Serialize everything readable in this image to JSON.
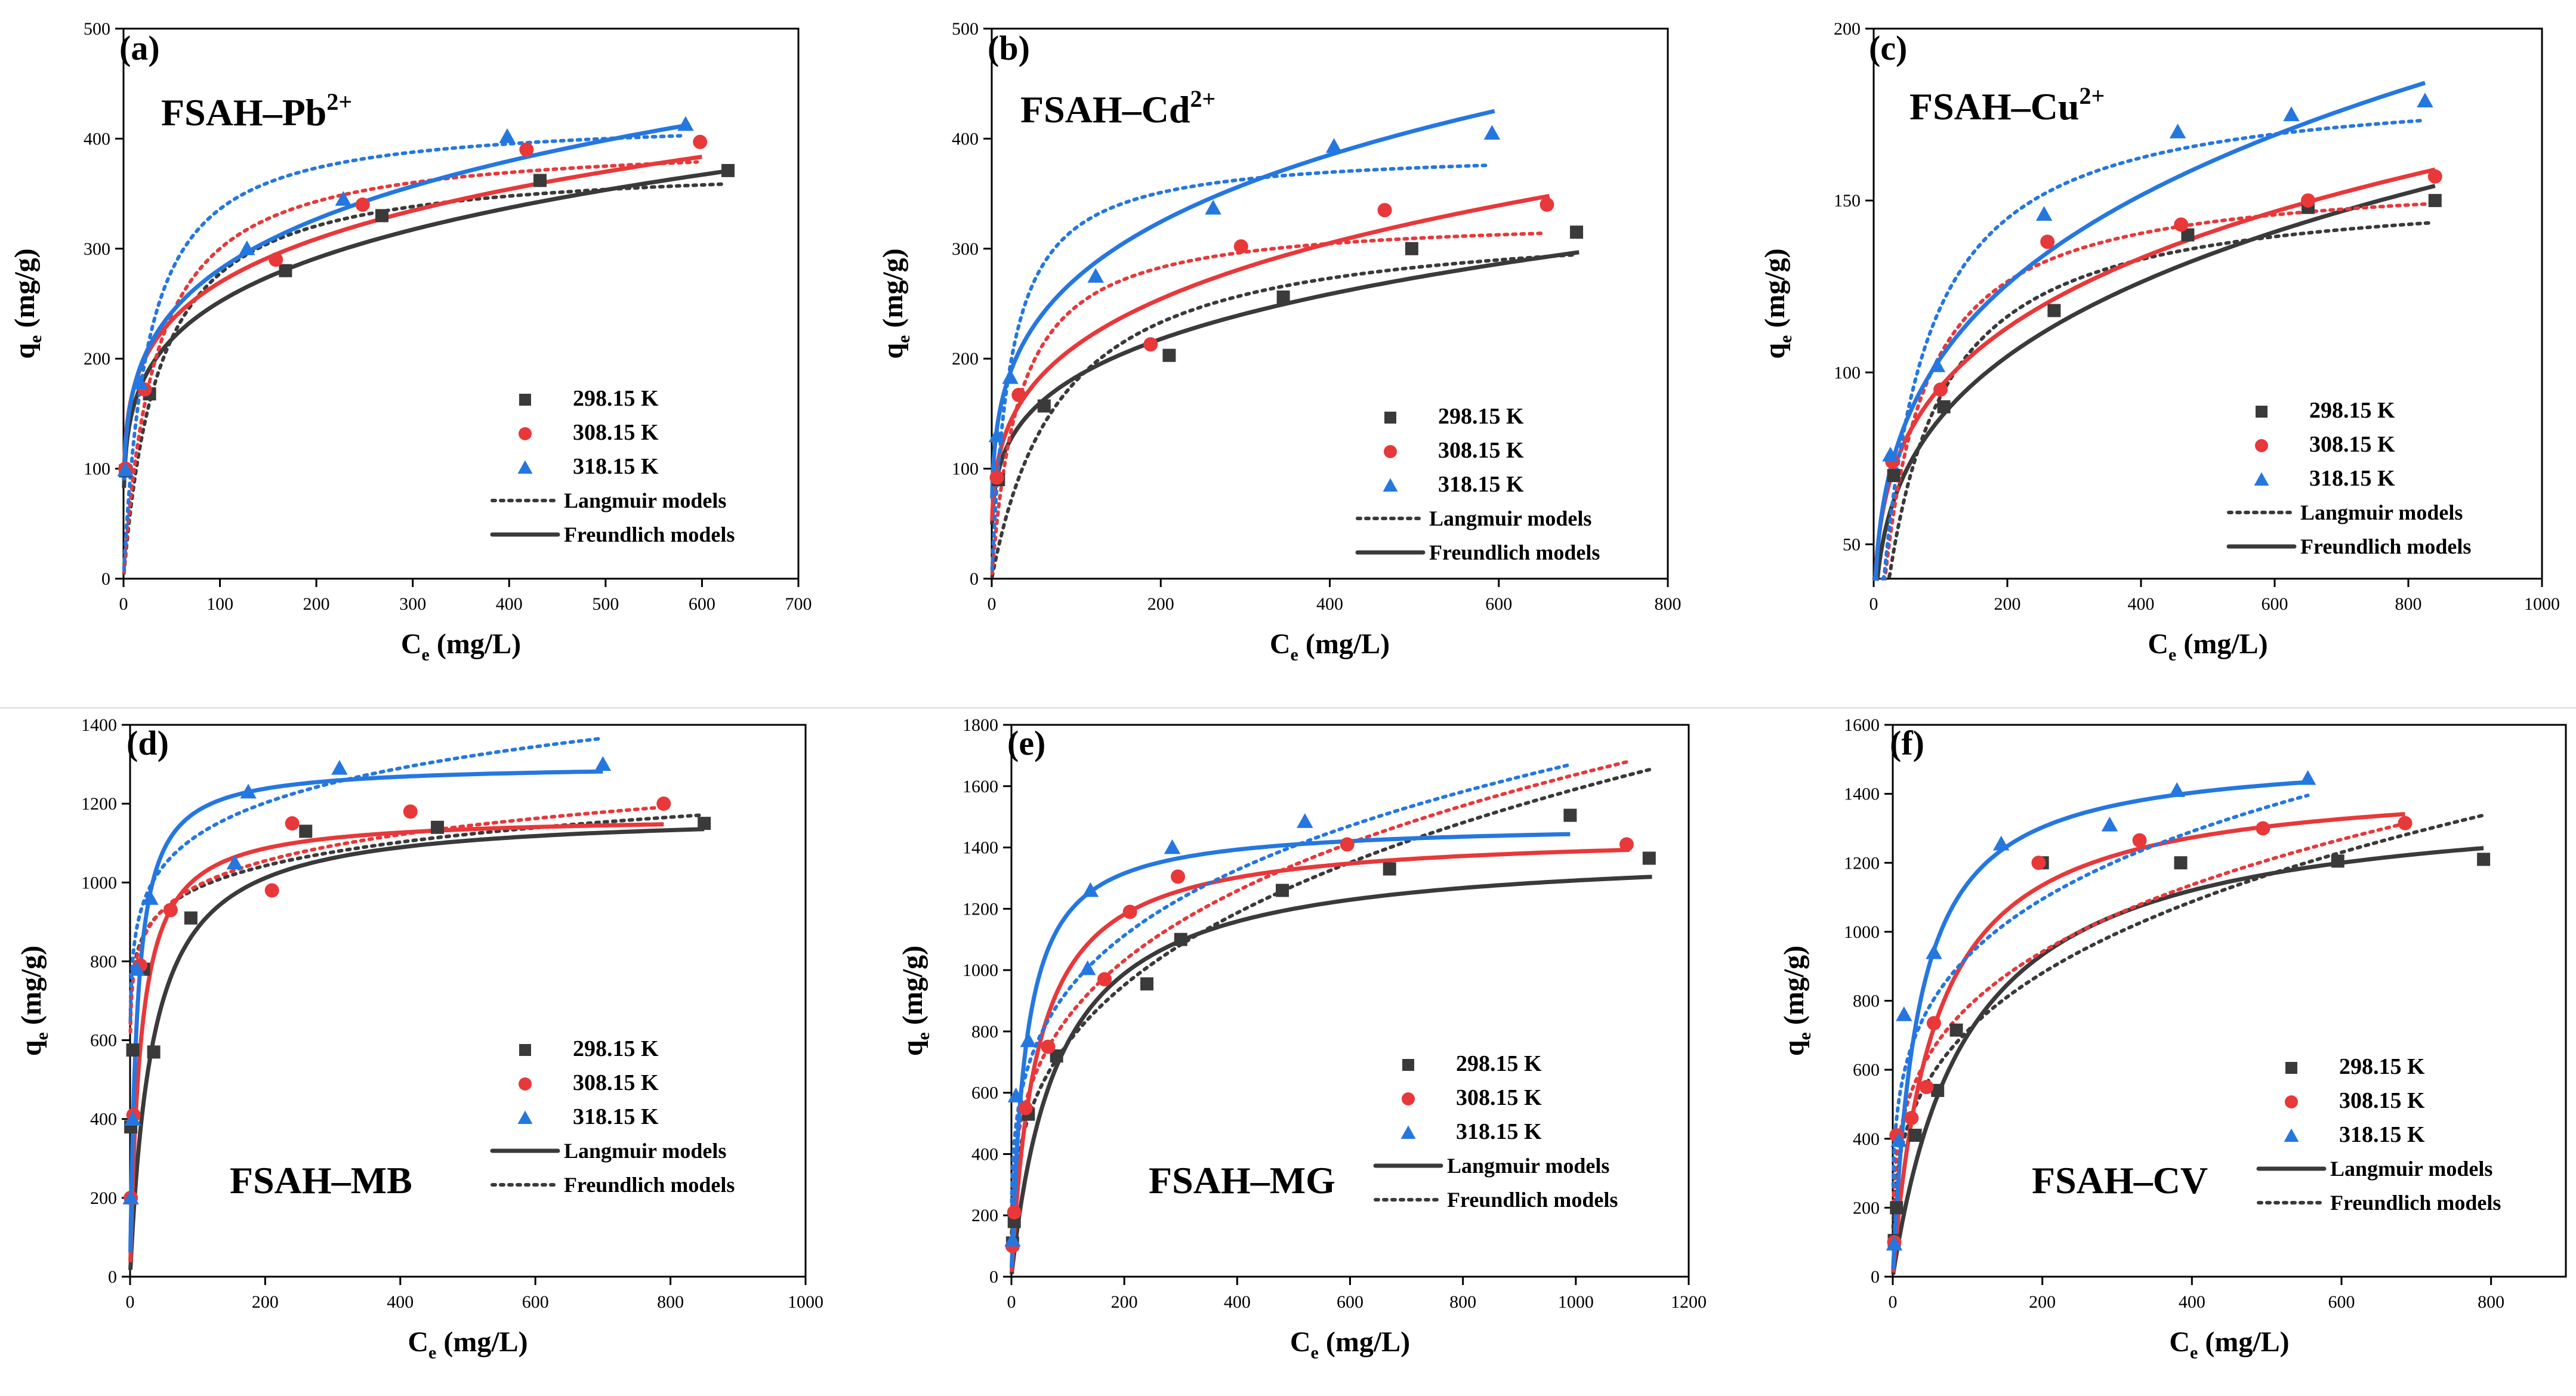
{
  "figure": {
    "colors": {
      "s298": "#3a3a3a",
      "s308": "#e8383a",
      "s318": "#2577e0",
      "axis": "#000000",
      "divider": "#e4e4e4"
    },
    "legend_entries": [
      "298.15 K",
      "308.15 K",
      "318.15 K"
    ],
    "panels": [
      {
        "tag": "(a)",
        "name": "FSAH–Pb",
        "ion": "2+",
        "xlabel_main": "C",
        "xlabel_sub": "e",
        "xlabel_unit": " (mg/L)",
        "ylabel_main": "q",
        "ylabel_sub": "e",
        "ylabel_unit": " (mg/g)",
        "xlim": [
          0,
          700
        ],
        "ylim": [
          0,
          500
        ],
        "xticks": [
          0,
          100,
          200,
          300,
          400,
          500,
          600,
          700
        ],
        "yticks": [
          0,
          100,
          200,
          300,
          400,
          500
        ],
        "solid_model": "Freundlich models",
        "dotted_model": "Langmuir models",
        "legend_order": [
          "298.15 K",
          "308.15 K",
          "318.15 K",
          "Langmuir models",
          "Freundlich models"
        ]
      },
      {
        "tag": "(b)",
        "name": "FSAH–Cd",
        "ion": "2+",
        "xlabel_main": "C",
        "xlabel_sub": "e",
        "xlabel_unit": " (mg/L)",
        "ylabel_main": "q",
        "ylabel_sub": "e",
        "ylabel_unit": " (mg/g)",
        "xlim": [
          0,
          800
        ],
        "ylim": [
          0,
          500
        ],
        "xticks": [
          0,
          200,
          400,
          600,
          800
        ],
        "yticks": [
          0,
          100,
          200,
          300,
          400,
          500
        ],
        "solid_model": "Freundlich models",
        "dotted_model": "Langmuir models",
        "legend_order": [
          "298.15 K",
          "308.15 K",
          "318.15 K",
          "Langmuir models",
          "Freundlich models"
        ]
      },
      {
        "tag": "(c)",
        "name": "FSAH–Cu",
        "ion": "2+",
        "xlabel_main": "C",
        "xlabel_sub": "e",
        "xlabel_unit": " (mg/L)",
        "ylabel_main": "q",
        "ylabel_sub": "e",
        "ylabel_unit": " (mg/g)",
        "xlim": [
          0,
          1000
        ],
        "ylim": [
          40,
          200
        ],
        "xticks": [
          0,
          200,
          400,
          600,
          800,
          1000
        ],
        "yticks": [
          50,
          100,
          150,
          200
        ],
        "solid_model": "Freundlich models",
        "dotted_model": "Langmuir models",
        "legend_order": [
          "298.15 K",
          "308.15 K",
          "318.15 K",
          "Langmuir models",
          "Freundlich models"
        ]
      },
      {
        "tag": "(d)",
        "name": "FSAH–MB",
        "ion": "",
        "xlabel_main": "C",
        "xlabel_sub": "e",
        "xlabel_unit": " (mg/L)",
        "ylabel_main": "q",
        "ylabel_sub": "e",
        "ylabel_unit": " (mg/g)",
        "xlim": [
          0,
          1000
        ],
        "ylim": [
          0,
          1400
        ],
        "xticks": [
          0,
          200,
          400,
          600,
          800,
          1000
        ],
        "yticks": [
          0,
          200,
          400,
          600,
          800,
          1000,
          1200,
          1400
        ],
        "solid_model": "Langmuir models",
        "dotted_model": "Freundlich models",
        "legend_order": [
          "298.15 K",
          "308.15 K",
          "318.15 K",
          "Langmuir models",
          "Freundlich models"
        ]
      },
      {
        "tag": "(e)",
        "name": "FSAH–MG",
        "ion": "",
        "xlabel_main": "C",
        "xlabel_sub": "e",
        "xlabel_unit": " (mg/L)",
        "ylabel_main": "q",
        "ylabel_sub": "e",
        "ylabel_unit": " (mg/g)",
        "xlim": [
          0,
          1200
        ],
        "ylim": [
          0,
          1800
        ],
        "xticks": [
          0,
          200,
          400,
          600,
          800,
          1000,
          1200
        ],
        "yticks": [
          0,
          200,
          400,
          600,
          800,
          1000,
          1200,
          1400,
          1600,
          1800
        ],
        "solid_model": "Langmuir models",
        "dotted_model": "Freundlich models",
        "legend_order": [
          "298.15 K",
          "308.15 K",
          "318.15 K",
          "Langmuir models",
          "Freundlich models"
        ]
      },
      {
        "tag": "(f)",
        "name": "FSAH–CV",
        "ion": "",
        "xlabel_main": "C",
        "xlabel_sub": "e",
        "xlabel_unit": " (mg/L)",
        "ylabel_main": "q",
        "ylabel_sub": "e",
        "ylabel_unit": " (mg/g)",
        "xlim": [
          0,
          900
        ],
        "ylim": [
          0,
          1600
        ],
        "xticks": [
          0,
          200,
          400,
          600,
          800
        ],
        "yticks": [
          0,
          200,
          400,
          600,
          800,
          1000,
          1200,
          1400,
          1600
        ],
        "solid_model": "Langmuir models",
        "dotted_model": "Freundlich models",
        "legend_order": [
          "298.15 K",
          "308.15 K",
          "318.15 K",
          "Langmuir models",
          "Freundlich models"
        ]
      }
    ]
  },
  "chart_data": [
    {
      "type": "scatter",
      "title": "(a) FSAH–Pb2+",
      "xlabel": "Ce (mg/L)",
      "ylabel": "qe (mg/g)",
      "xlim": [
        0,
        700
      ],
      "ylim": [
        0,
        500
      ],
      "series": [
        {
          "name": "298.15 K",
          "marker": "square",
          "x": [
            2,
            27,
            168,
            268,
            432,
            627
          ],
          "y": [
            98,
            168,
            280,
            330,
            362,
            371
          ],
          "langmuir": {
            "qm": 380,
            "kl": 0.027,
            "xmax": 625
          },
          "freundlich": {
            "kf": 95.5,
            "n": 4.75,
            "xmax": 630
          }
        },
        {
          "name": "308.15 K",
          "marker": "circle",
          "x": [
            2,
            22,
            158,
            248,
            418,
            598
          ],
          "y": [
            100,
            172,
            290,
            340,
            390,
            397
          ],
          "langmuir": {
            "qm": 400,
            "kl": 0.03,
            "xmax": 595
          },
          "freundlich": {
            "kf": 108.6,
            "n": 5.07,
            "xmax": 600
          }
        },
        {
          "name": "318.15 K",
          "marker": "triangle",
          "x": [
            2,
            17,
            128,
            228,
            398,
            583
          ],
          "y": [
            99,
            178,
            300,
            345,
            402,
            413
          ],
          "langmuir": {
            "qm": 420,
            "kl": 0.04,
            "xmax": 580
          },
          "freundlich": {
            "kf": 103.8,
            "n": 4.62,
            "xmax": 585
          }
        }
      ]
    },
    {
      "type": "scatter",
      "title": "(b) FSAH–Cd2+",
      "xlabel": "Ce (mg/L)",
      "ylabel": "qe (mg/g)",
      "xlim": [
        0,
        800
      ],
      "ylim": [
        0,
        500
      ],
      "series": [
        {
          "name": "298.15 K",
          "marker": "square",
          "x": [
            8,
            62,
            210,
            345,
            497,
            692
          ],
          "y": [
            90,
            157,
            203,
            256,
            300,
            315
          ],
          "langmuir": {
            "qm": 330,
            "kl": 0.012,
            "xmax": 690
          },
          "freundlich": {
            "kf": 58.5,
            "n": 4.03,
            "xmax": 695
          }
        },
        {
          "name": "308.15 K",
          "marker": "circle",
          "x": [
            6,
            32,
            188,
            295,
            465,
            657
          ],
          "y": [
            92,
            167,
            213,
            302,
            335,
            340
          ],
          "langmuir": {
            "qm": 330,
            "kl": 0.03,
            "xmax": 655
          },
          "freundlich": {
            "kf": 63.3,
            "n": 3.81,
            "xmax": 660
          }
        },
        {
          "name": "318.15 K",
          "marker": "triangle",
          "x": [
            6,
            22,
            123,
            262,
            405,
            592
          ],
          "y": [
            130,
            183,
            275,
            337,
            393,
            405
          ],
          "langmuir": {
            "qm": 390,
            "kl": 0.045,
            "xmax": 590
          },
          "freundlich": {
            "kf": 87.1,
            "n": 4.03,
            "xmax": 595
          }
        }
      ]
    },
    {
      "type": "scatter",
      "title": "(c) FSAH–Cu2+",
      "xlabel": "Ce (mg/L)",
      "ylabel": "qe (mg/g)",
      "xlim": [
        0,
        1000
      ],
      "ylim": [
        40,
        200
      ],
      "series": [
        {
          "name": "298.15 K",
          "marker": "square",
          "x": [
            30,
            105,
            270,
            470,
            650,
            840
          ],
          "y": [
            70,
            90,
            118,
            140,
            148,
            150
          ],
          "langmuir": {
            "qm": 155,
            "kl": 0.015,
            "xmax": 835
          },
          "freundlich": {
            "kf": 25,
            "n": 3.7,
            "xmax": 840
          }
        },
        {
          "name": "308.15 K",
          "marker": "circle",
          "x": [
            28,
            100,
            260,
            460,
            650,
            840
          ],
          "y": [
            74,
            95,
            138,
            143,
            150,
            157
          ],
          "langmuir": {
            "qm": 158,
            "kl": 0.02,
            "xmax": 835
          },
          "freundlich": {
            "kf": 32,
            "n": 4.2,
            "xmax": 840
          }
        },
        {
          "name": "318.15 K",
          "marker": "triangle",
          "x": [
            25,
            95,
            255,
            455,
            625,
            825
          ],
          "y": [
            76,
            102,
            146,
            170,
            175,
            179
          ],
          "langmuir": {
            "qm": 185,
            "kl": 0.018,
            "xmax": 820
          },
          "freundlich": {
            "kf": 30,
            "n": 3.7,
            "xmax": 825
          }
        }
      ]
    },
    {
      "type": "scatter",
      "title": "(d) FSAH–MB",
      "xlabel": "Ce (mg/L)",
      "ylabel": "qe (mg/g)",
      "xlim": [
        0,
        1000
      ],
      "ylim": [
        0,
        1400
      ],
      "series": [
        {
          "name": "298.15 K",
          "marker": "square",
          "x": [
            1,
            4,
            20,
            35,
            90,
            260,
            455,
            850
          ],
          "y": [
            380,
            575,
            780,
            570,
            910,
            1130,
            1140,
            1150
          ],
          "langmuir": {
            "qm": 1180,
            "kl": 0.03,
            "xmax": 850
          },
          "freundlich": {
            "kf": 680,
            "n": 12.4,
            "xmax": 850
          }
        },
        {
          "name": "308.15 K",
          "marker": "circle",
          "x": [
            1,
            5,
            15,
            60,
            210,
            240,
            415,
            790
          ],
          "y": [
            200,
            410,
            790,
            930,
            980,
            1150,
            1180,
            1200
          ],
          "langmuir": {
            "qm": 1170,
            "kl": 0.065,
            "xmax": 790
          },
          "freundlich": {
            "kf": 660,
            "n": 11.3,
            "xmax": 790
          }
        },
        {
          "name": "318.15 K",
          "marker": "triangle",
          "x": [
            1,
            4,
            10,
            30,
            155,
            175,
            310,
            700
          ],
          "y": [
            200,
            400,
            780,
            960,
            1050,
            1230,
            1290,
            1300
          ],
          "langmuir": {
            "qm": 1300,
            "kl": 0.1,
            "xmax": 700
          },
          "freundlich": {
            "kf": 700,
            "n": 9.8,
            "xmax": 700
          }
        }
      ]
    },
    {
      "type": "scatter",
      "title": "(e) FSAH–MG",
      "xlabel": "Ce (mg/L)",
      "ylabel": "qe (mg/g)",
      "xlim": [
        0,
        1200
      ],
      "ylim": [
        0,
        1800
      ],
      "series": [
        {
          "name": "298.15 K",
          "marker": "square",
          "x": [
            2,
            5,
            30,
            80,
            240,
            300,
            480,
            670,
            990,
            1130
          ],
          "y": [
            110,
            180,
            530,
            720,
            955,
            1100,
            1260,
            1330,
            1505,
            1365
          ],
          "langmuir": {
            "qm": 1400,
            "kl": 0.012,
            "xmax": 1135
          },
          "freundlich": {
            "kf": 175,
            "n": 3.13,
            "xmax": 1135
          }
        },
        {
          "name": "308.15 K",
          "marker": "circle",
          "x": [
            2,
            5,
            25,
            65,
            165,
            210,
            295,
            595,
            1090
          ],
          "y": [
            100,
            210,
            550,
            750,
            970,
            1190,
            1305,
            1410,
            1410
          ],
          "langmuir": {
            "qm": 1450,
            "kl": 0.022,
            "xmax": 1095
          },
          "freundlich": {
            "kf": 225,
            "n": 3.48,
            "xmax": 1095
          }
        },
        {
          "name": "318.15 K",
          "marker": "triangle",
          "x": [
            2,
            8,
            30,
            135,
            140,
            285,
            520
          ],
          "y": [
            120,
            590,
            770,
            1005,
            1260,
            1400,
            1485
          ],
          "langmuir": {
            "qm": 1480,
            "kl": 0.04,
            "xmax": 990
          },
          "freundlich": {
            "kf": 290,
            "n": 3.94,
            "xmax": 990
          }
        }
      ]
    },
    {
      "type": "scatter",
      "title": "(f) FSAH–CV",
      "xlabel": "Ce (mg/L)",
      "ylabel": "qe (mg/g)",
      "xlim": [
        0,
        900
      ],
      "ylim": [
        0,
        1600
      ],
      "series": [
        {
          "name": "298.15 K",
          "marker": "square",
          "x": [
            2,
            5,
            30,
            60,
            85,
            200,
            385,
            595,
            790
          ],
          "y": [
            105,
            200,
            410,
            540,
            715,
            1200,
            1200,
            1205,
            1210
          ],
          "langmuir": {
            "qm": 1400,
            "kl": 0.01,
            "xmax": 790
          },
          "freundlich": {
            "kf": 175,
            "n": 3.28,
            "xmax": 790
          }
        },
        {
          "name": "308.15 K",
          "marker": "circle",
          "x": [
            2,
            5,
            25,
            45,
            55,
            195,
            330,
            495,
            685
          ],
          "y": [
            100,
            410,
            460,
            550,
            735,
            1200,
            1265,
            1300,
            1315
          ],
          "langmuir": {
            "qm": 1450,
            "kl": 0.018,
            "xmax": 685
          },
          "freundlich": {
            "kf": 225,
            "n": 3.7,
            "xmax": 685
          }
        },
        {
          "name": "318.15 K",
          "marker": "triangle",
          "x": [
            2,
            8,
            15,
            55,
            145,
            290,
            380,
            555
          ],
          "y": [
            95,
            395,
            760,
            940,
            1255,
            1310,
            1410,
            1445
          ],
          "langmuir": {
            "qm": 1520,
            "kl": 0.03,
            "xmax": 555
          },
          "freundlich": {
            "kf": 310,
            "n": 4.2,
            "xmax": 555
          }
        }
      ]
    }
  ]
}
